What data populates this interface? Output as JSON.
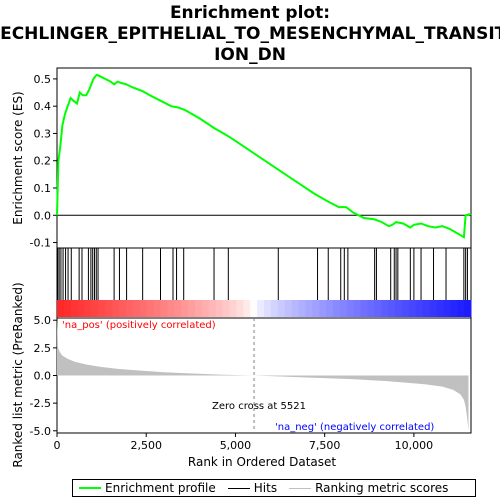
{
  "title_lines": [
    "Enrichment plot:",
    "JECHLINGER_EPITHELIAL_TO_MESENCHYMAL_TRANSIT",
    "ION_DN"
  ],
  "colors": {
    "es_line": "#00ff00",
    "hits": "#000000",
    "metric_fill": "#c0c0c0",
    "pos_label": "#ff0000",
    "neg_label": "#0000ff",
    "zero_line": "#808080",
    "bar_red": "#ff0000",
    "bar_blue": "#0000ff"
  },
  "chart_data": [
    {
      "type": "line",
      "panel": "enrichment-profile",
      "ylabel": "Enrichment score (ES)",
      "xlim": [
        0,
        11600
      ],
      "ylim": [
        -0.12,
        0.54
      ],
      "yticks": [
        -0.1,
        0.0,
        0.1,
        0.2,
        0.3,
        0.4,
        0.5
      ],
      "ytick_labels": [
        "-0.1",
        "0.0",
        "0.1",
        "0.2",
        "0.3",
        "0.4",
        "0.5"
      ],
      "series": [
        {
          "x": [
            0,
            40,
            90,
            150,
            220,
            300,
            380,
            460,
            560,
            640,
            720,
            820,
            900,
            960,
            1020,
            1080,
            1120,
            1200,
            1350,
            1500,
            1600,
            1700,
            1800,
            1950,
            2100,
            2400,
            2600,
            2900,
            3200,
            3400,
            3600,
            4000,
            4400,
            4800,
            5200,
            5600,
            6000,
            6400,
            6800,
            7200,
            7600,
            7900,
            8100,
            8300,
            8600,
            8900,
            9100,
            9300,
            9400,
            9500,
            9700,
            9900,
            10000,
            10200,
            10400,
            10600,
            10800,
            11000,
            11200,
            11400,
            11450,
            11600
          ],
          "y": [
            0.0,
            0.2,
            0.25,
            0.33,
            0.37,
            0.4,
            0.43,
            0.42,
            0.41,
            0.45,
            0.44,
            0.44,
            0.46,
            0.48,
            0.5,
            0.51,
            0.515,
            0.51,
            0.5,
            0.49,
            0.48,
            0.49,
            0.485,
            0.48,
            0.47,
            0.455,
            0.44,
            0.42,
            0.4,
            0.395,
            0.385,
            0.355,
            0.32,
            0.29,
            0.255,
            0.22,
            0.185,
            0.15,
            0.115,
            0.08,
            0.05,
            0.03,
            0.03,
            0.01,
            -0.01,
            -0.015,
            -0.025,
            -0.04,
            -0.035,
            -0.025,
            -0.03,
            -0.045,
            -0.035,
            -0.03,
            -0.04,
            -0.045,
            -0.04,
            -0.05,
            -0.065,
            -0.08,
            0.0,
            0.005
          ]
        }
      ]
    },
    {
      "type": "barcode",
      "panel": "hits",
      "hit_positions": [
        20,
        60,
        110,
        170,
        240,
        310,
        400,
        620,
        700,
        880,
        950,
        1000,
        1050,
        1100,
        1150,
        1600,
        1750,
        1950,
        2400,
        2900,
        3250,
        3350,
        3550,
        4400,
        4800,
        6200,
        7300,
        7600,
        7950,
        8050,
        8150,
        8900,
        8950,
        9350,
        9450,
        9500,
        9550,
        9900,
        10000,
        10200,
        10550,
        10900,
        11400,
        11450,
        11500
      ]
    },
    {
      "type": "area",
      "panel": "ranked-metric",
      "ylabel": "Ranked list metric (PreRanked)",
      "xlabel": "Rank in Ordered Dataset",
      "xlim": [
        0,
        11600
      ],
      "ylim": [
        -5.2,
        5.2
      ],
      "yticks": [
        -5.0,
        -2.5,
        0.0,
        2.5,
        5.0
      ],
      "ytick_labels": [
        "-5.0",
        "-2.5",
        "0.0",
        "2.5",
        "5.0"
      ],
      "xticks": [
        0,
        2500,
        5000,
        7500,
        10000
      ],
      "xtick_labels": [
        "0",
        "2,500",
        "5,000",
        "7,500",
        "10,000"
      ],
      "x": [
        0,
        30,
        80,
        150,
        300,
        500,
        800,
        1200,
        1700,
        2300,
        3000,
        3800,
        4600,
        5200,
        5521,
        6000,
        6800,
        7600,
        8400,
        9200,
        9800,
        10300,
        10800,
        11100,
        11300,
        11400,
        11450,
        11500,
        11530
      ],
      "y": [
        5.2,
        2.5,
        2.1,
        1.8,
        1.5,
        1.25,
        1.0,
        0.8,
        0.6,
        0.45,
        0.3,
        0.18,
        0.08,
        0.02,
        0.0,
        -0.05,
        -0.15,
        -0.25,
        -0.35,
        -0.5,
        -0.65,
        -0.8,
        -1.0,
        -1.3,
        -1.7,
        -2.2,
        -2.8,
        -4.0,
        -5.0
      ],
      "annotations": {
        "pos": "'na_pos' (positively correlated)",
        "neg": "'na_neg' (negatively correlated)",
        "zero_cross": "Zero cross at 5521"
      },
      "zero_cross_value": 5521
    }
  ],
  "legend": {
    "items": [
      {
        "label": "Enrichment profile",
        "color": "#00ff00"
      },
      {
        "label": "Hits",
        "color": "#000000"
      },
      {
        "label": "Ranking metric scores",
        "color": "#c0c0c0"
      }
    ]
  }
}
